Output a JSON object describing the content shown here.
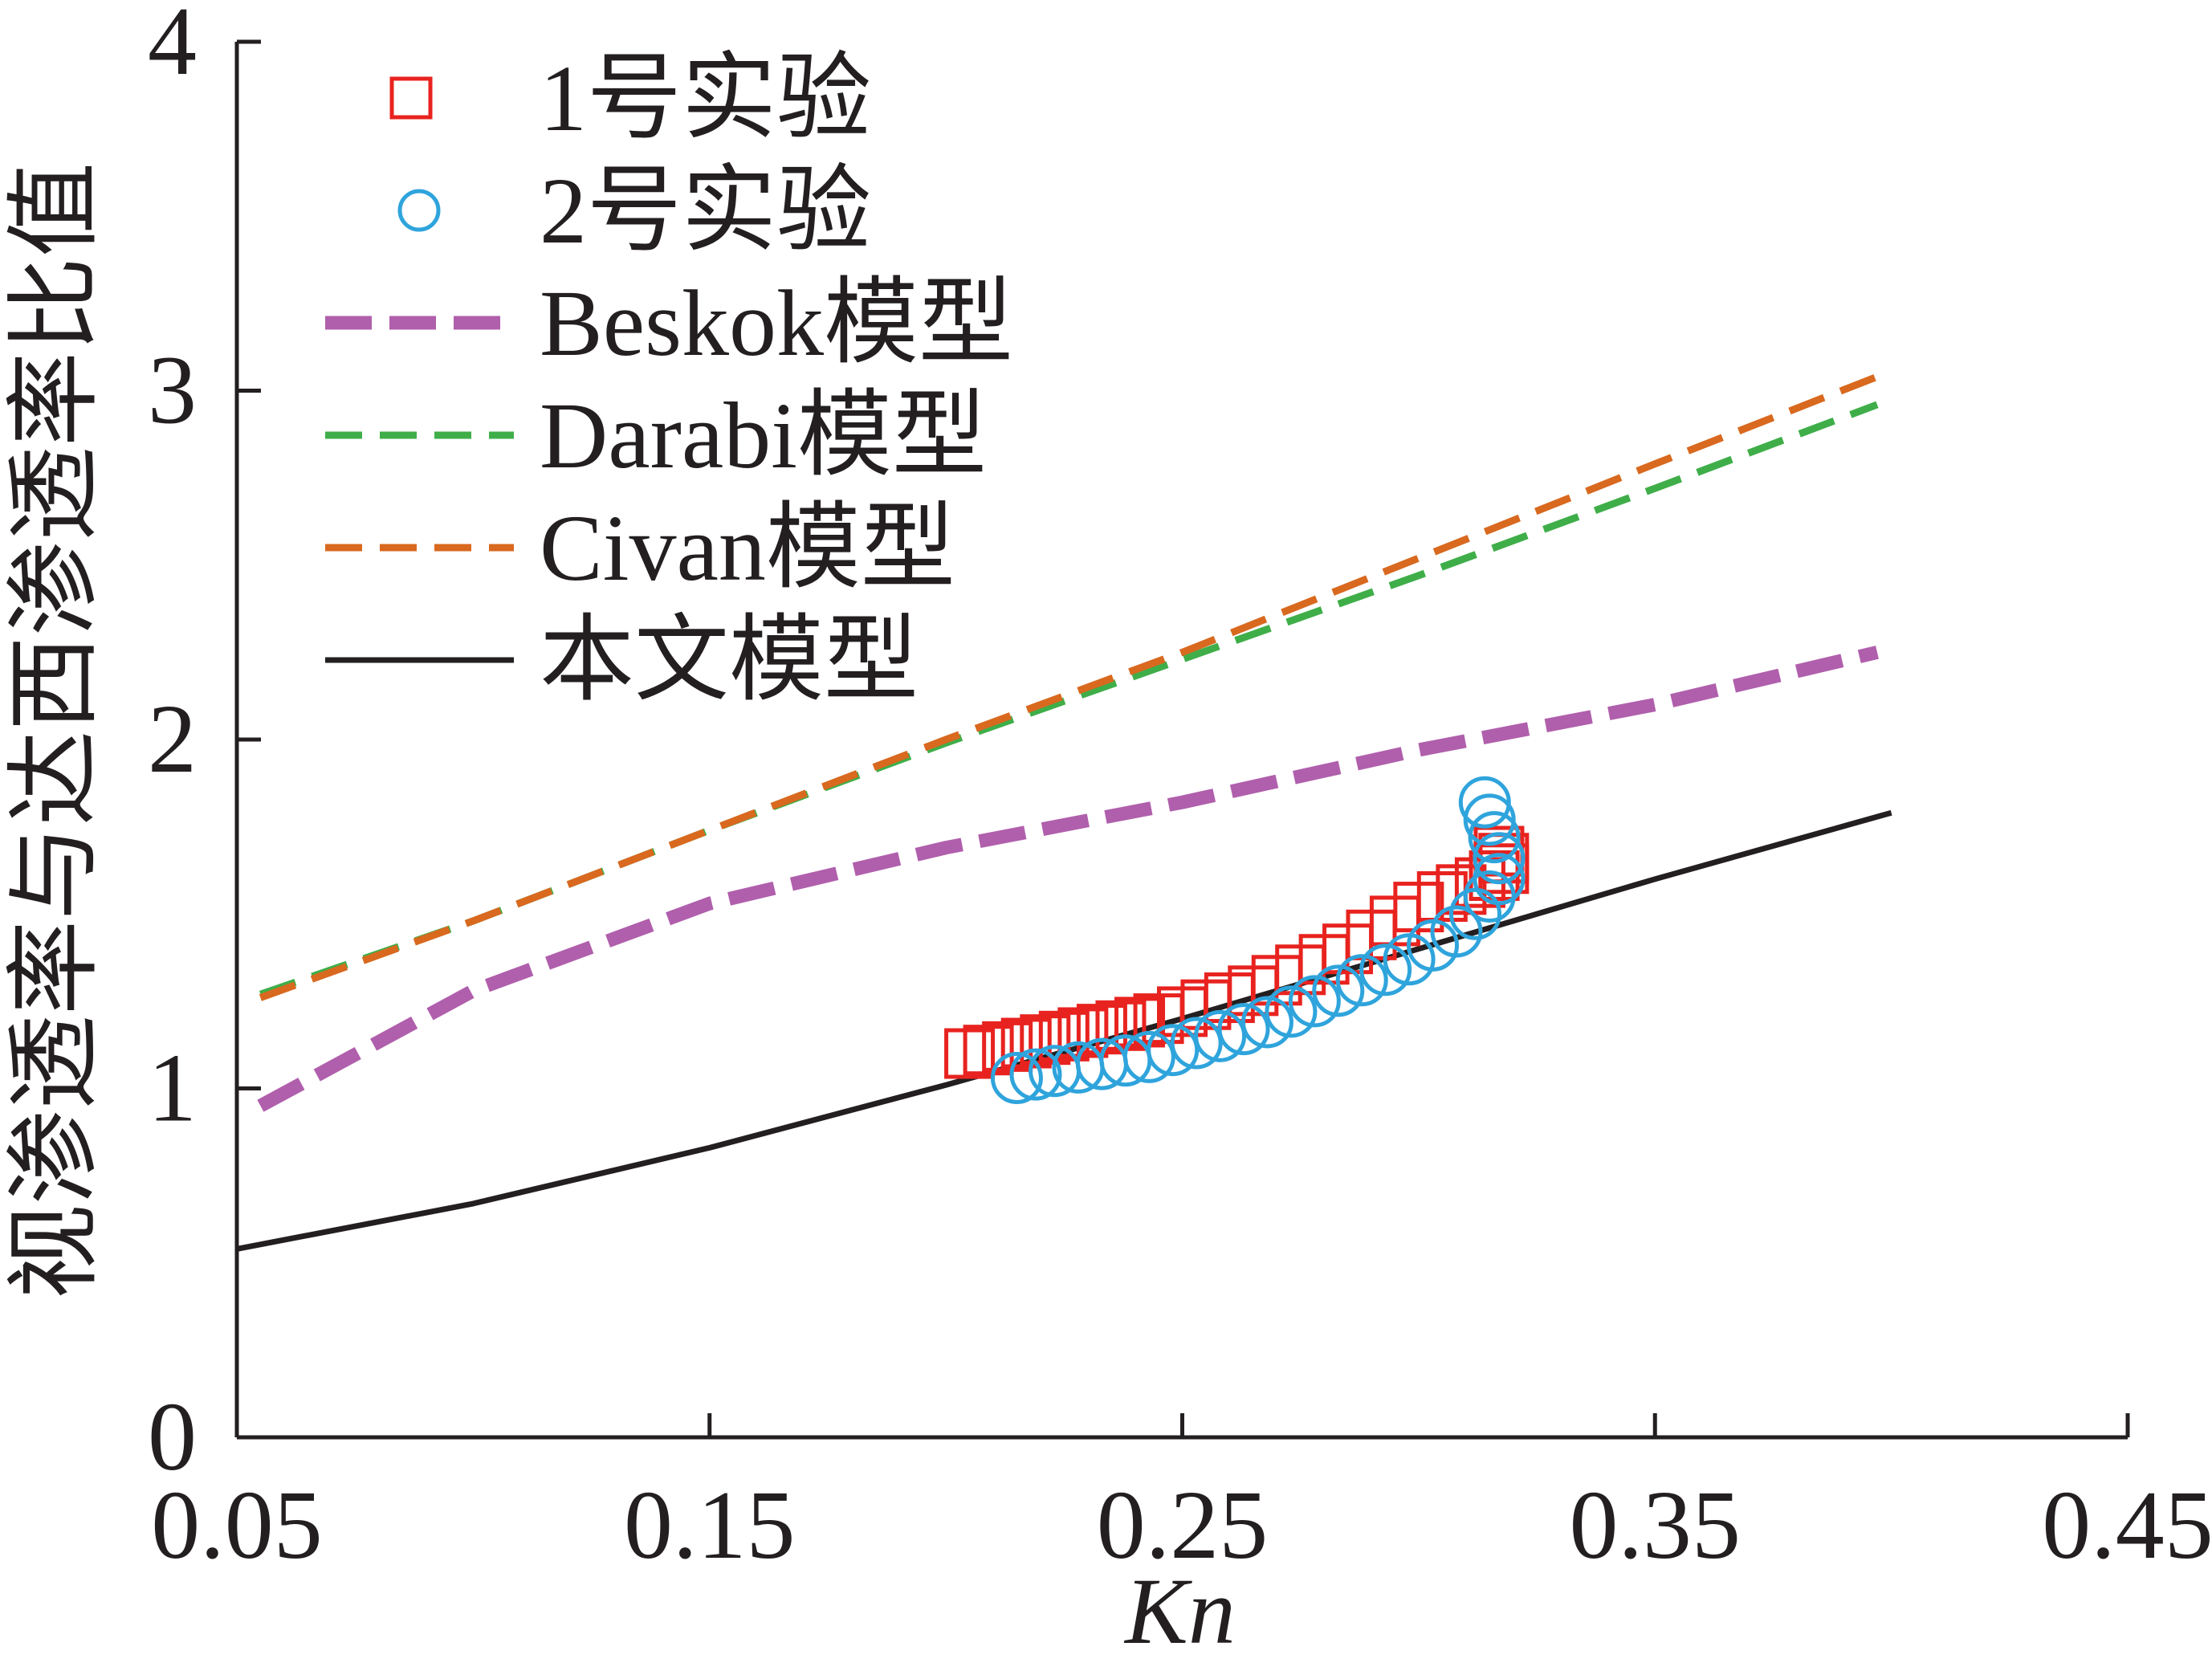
{
  "chart_data": {
    "type": "line",
    "xlabel": "Kn",
    "ylabel": "视渗透率与达西渗透率比值",
    "xlim": [
      0.05,
      0.45
    ],
    "ylim": [
      0,
      4
    ],
    "x_ticks": [
      "0.05",
      "0.15",
      "0.25",
      "0.35",
      "0.45"
    ],
    "y_ticks": [
      "0",
      "1",
      "2",
      "3",
      "4"
    ],
    "grid": false,
    "legend_position": "top-left",
    "colors": {
      "exp1": "#e8231f",
      "exp2": "#2fa4dc",
      "beskok": "#b05fac",
      "darabi": "#3fae49",
      "civan": "#d8691f",
      "this_model": "#231f20"
    },
    "series": [
      {
        "name": "1号实验",
        "marker": "square",
        "color": "#e8231f",
        "x": [
          0.205,
          0.209,
          0.213,
          0.217,
          0.221,
          0.225,
          0.229,
          0.233,
          0.237,
          0.241,
          0.245,
          0.25,
          0.255,
          0.26,
          0.265,
          0.27,
          0.275,
          0.28,
          0.285,
          0.29,
          0.295,
          0.3,
          0.305,
          0.309,
          0.313,
          0.316,
          0.318,
          0.318,
          0.317
        ],
        "y": [
          1.1,
          1.11,
          1.12,
          1.13,
          1.14,
          1.15,
          1.16,
          1.17,
          1.18,
          1.19,
          1.2,
          1.22,
          1.24,
          1.26,
          1.28,
          1.31,
          1.34,
          1.37,
          1.4,
          1.44,
          1.48,
          1.52,
          1.55,
          1.57,
          1.59,
          1.61,
          1.63,
          1.66,
          1.68
        ]
      },
      {
        "name": "2号实验",
        "marker": "circle",
        "color": "#2fa4dc",
        "x": [
          0.215,
          0.219,
          0.223,
          0.228,
          0.233,
          0.238,
          0.243,
          0.248,
          0.253,
          0.258,
          0.263,
          0.268,
          0.273,
          0.278,
          0.283,
          0.288,
          0.293,
          0.298,
          0.303,
          0.308,
          0.312,
          0.315,
          0.317,
          0.317,
          0.316,
          0.315,
          0.314
        ],
        "y": [
          1.03,
          1.04,
          1.05,
          1.06,
          1.07,
          1.08,
          1.09,
          1.11,
          1.13,
          1.15,
          1.17,
          1.19,
          1.22,
          1.25,
          1.28,
          1.31,
          1.34,
          1.37,
          1.41,
          1.45,
          1.5,
          1.55,
          1.6,
          1.66,
          1.72,
          1.77,
          1.82
        ]
      },
      {
        "name": "Beskok模型",
        "line_style": "dashed-thick",
        "color": "#b05fac",
        "x": [
          0.055,
          0.1,
          0.15,
          0.2,
          0.25,
          0.3,
          0.35,
          0.397
        ],
        "y": [
          0.95,
          1.28,
          1.53,
          1.69,
          1.82,
          1.97,
          2.1,
          2.25
        ]
      },
      {
        "name": "Darabi模型",
        "line_style": "dashed",
        "color": "#3fae49",
        "x": [
          0.055,
          0.1,
          0.15,
          0.2,
          0.25,
          0.3,
          0.35,
          0.397
        ],
        "y": [
          1.27,
          1.48,
          1.74,
          1.99,
          2.23,
          2.47,
          2.72,
          2.96
        ]
      },
      {
        "name": "Civan模型",
        "line_style": "dashed",
        "color": "#d8691f",
        "x": [
          0.055,
          0.1,
          0.15,
          0.2,
          0.25,
          0.3,
          0.35,
          0.397
        ],
        "y": [
          1.26,
          1.48,
          1.74,
          2.0,
          2.25,
          2.52,
          2.79,
          3.04
        ]
      },
      {
        "name": "本文模型",
        "line_style": "solid",
        "color": "#231f20",
        "x": [
          0.05,
          0.1,
          0.15,
          0.2,
          0.25,
          0.3,
          0.35,
          0.4
        ],
        "y": [
          0.54,
          0.67,
          0.83,
          1.01,
          1.2,
          1.4,
          1.6,
          1.79
        ]
      }
    ]
  }
}
